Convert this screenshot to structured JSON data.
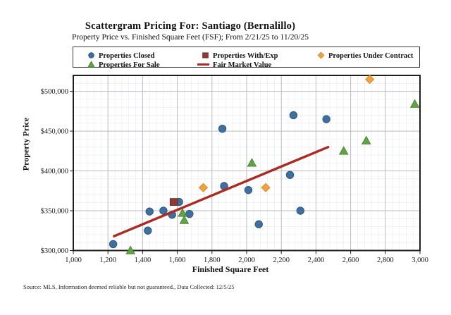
{
  "header": {
    "title": "Scattergram Pricing For: Santiago (Bernalillo)",
    "subtitle": "Property Price vs. Finished Square Feet (FSF); From 2/21/25 to 11/20/25"
  },
  "legend": {
    "items": [
      {
        "label": "Properties Closed",
        "marker": "circle",
        "color": "#3E6F9F",
        "edge": "#2F5A82"
      },
      {
        "label": "Properties With/Exp",
        "marker": "square",
        "color": "#8E3B33",
        "edge": "#6E2B25"
      },
      {
        "label": "Properties Under Contract",
        "marker": "diamond",
        "color": "#F0A23F",
        "edge": "#D88D2D"
      },
      {
        "label": "Properties For Sale",
        "marker": "triangle",
        "color": "#62A346",
        "edge": "#4C8A34"
      },
      {
        "label": "Fair Market Value",
        "marker": "line",
        "color": "#AE2A20",
        "edge": "#AE2A20"
      }
    ]
  },
  "chart_data": {
    "type": "scatter",
    "title": "Scattergram Pricing For: Santiago (Bernalillo)",
    "subtitle": "Property Price vs. Finished Square Feet (FSF); From 2/21/25 to 11/20/25",
    "xlabel": "Finished Square Feet",
    "ylabel": "Property Price",
    "xlim": [
      1000,
      3000
    ],
    "ylim": [
      300000,
      520000
    ],
    "x_ticks": [
      1000,
      1200,
      1400,
      1600,
      1800,
      2000,
      2200,
      2400,
      2600,
      2800,
      3000
    ],
    "x_tick_labels": [
      "1,000",
      "1,200",
      "1,400",
      "1,600",
      "1,800",
      "2,000",
      "2,200",
      "2,400",
      "2,600",
      "2,800",
      "3,000"
    ],
    "y_ticks": [
      300000,
      350000,
      400000,
      450000,
      500000
    ],
    "y_tick_labels": [
      "$300,000",
      "$350,000",
      "$400,000",
      "$450,000",
      "$500,000"
    ],
    "x_minor_step": 40,
    "y_minor_step": 10000,
    "grid": {
      "major_color": "#b9bdc2",
      "minor_color": "#e8eaee",
      "frame_color": "#1f1f1f"
    },
    "series": [
      {
        "name": "Properties Closed",
        "marker": "circle",
        "color": "#3E6F9F",
        "edge": "#2F5A82",
        "points": [
          [
            1230,
            308000
          ],
          [
            1430,
            325000
          ],
          [
            1440,
            349000
          ],
          [
            1520,
            350000
          ],
          [
            1570,
            345000
          ],
          [
            1610,
            361000
          ],
          [
            1670,
            346000
          ],
          [
            1860,
            453000
          ],
          [
            1870,
            381000
          ],
          [
            2010,
            376000
          ],
          [
            2070,
            333000
          ],
          [
            2250,
            395000
          ],
          [
            2270,
            470000
          ],
          [
            2310,
            350000
          ],
          [
            2460,
            465000
          ]
        ]
      },
      {
        "name": "Properties With/Exp",
        "marker": "square",
        "color": "#8E3B33",
        "edge": "#6E2B25",
        "points": [
          [
            1580,
            361000
          ]
        ]
      },
      {
        "name": "Properties Under Contract",
        "marker": "diamond",
        "color": "#F0A23F",
        "edge": "#D88D2D",
        "points": [
          [
            1750,
            379000
          ],
          [
            2110,
            379000
          ],
          [
            2710,
            515000
          ]
        ]
      },
      {
        "name": "Properties For Sale",
        "marker": "triangle",
        "color": "#62A346",
        "edge": "#4C8A34",
        "points": [
          [
            1330,
            300000
          ],
          [
            1630,
            347000
          ],
          [
            1640,
            338000
          ],
          [
            2030,
            410000
          ],
          [
            2560,
            425000
          ],
          [
            2690,
            438000
          ],
          [
            2970,
            484000
          ]
        ]
      }
    ],
    "trend_line": {
      "name": "Fair Market Value",
      "color": "#AE2A20",
      "from": [
        1235,
        318000
      ],
      "to": [
        2470,
        430000
      ]
    },
    "legend_position": "top"
  },
  "footer": {
    "source_note": "Source: MLS, Information deemed reliable but not guaranteed., Data Collected: 12/5/25"
  }
}
